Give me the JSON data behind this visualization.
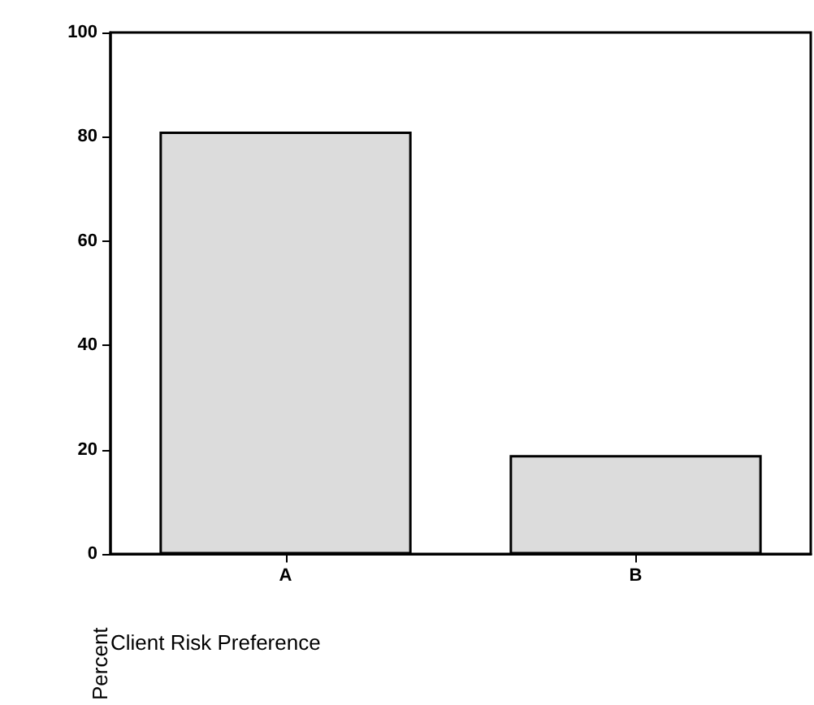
{
  "chart_data": {
    "type": "bar",
    "xlabel": "Client Risk Preference",
    "ylabel": "Percent",
    "categories": [
      "A",
      "B"
    ],
    "values": [
      81,
      19
    ],
    "color": "#dcdcdc",
    "ylim": [
      0,
      100
    ],
    "yticks": [
      0,
      20,
      40,
      60,
      80,
      100
    ],
    "grid": false
  }
}
